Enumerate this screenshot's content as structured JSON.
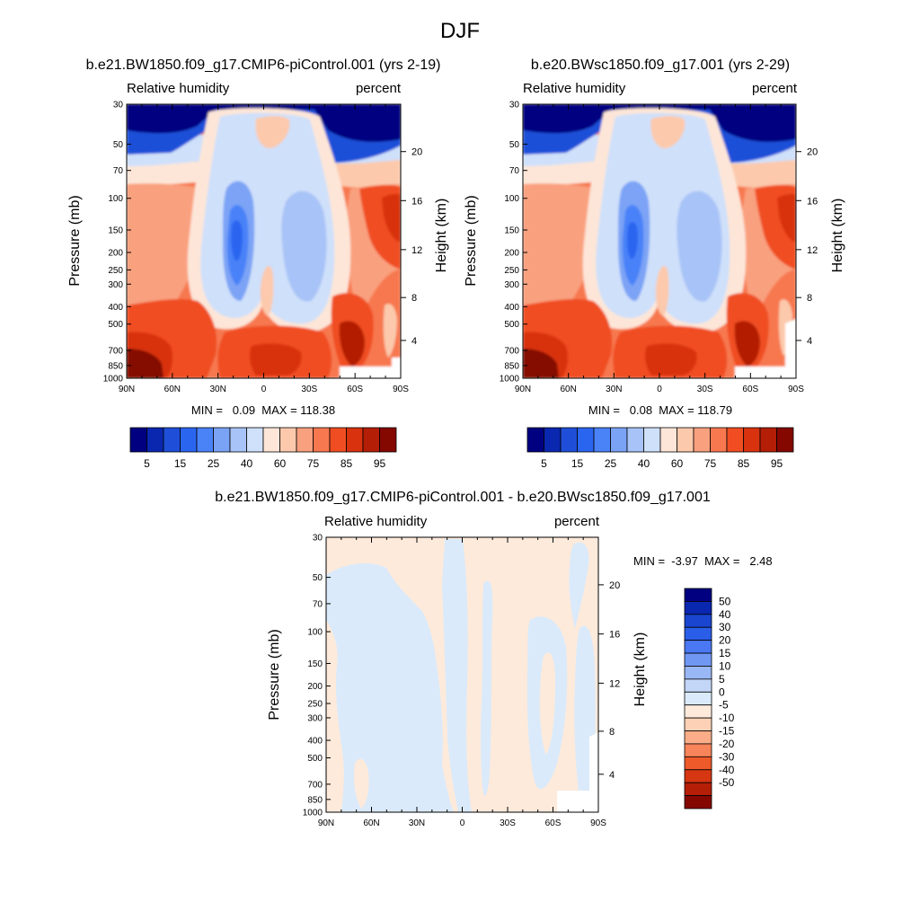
{
  "figure": {
    "title": "DJF"
  },
  "colors": {
    "absolute_scale": [
      "#000080",
      "#0a27b0",
      "#1f4fd8",
      "#2a65f0",
      "#4a82f8",
      "#7ba3f5",
      "#a8c3f7",
      "#cfe0fa",
      "#fde6d8",
      "#fcc9ac",
      "#f9a07e",
      "#f7784f",
      "#f04e22",
      "#d8320e",
      "#b41e06",
      "#840800"
    ],
    "diff_scale": [
      "#000080",
      "#0a27b0",
      "#1a45d0",
      "#2a5de8",
      "#4a78f3",
      "#7098f3",
      "#9ab7f5",
      "#c3d6f8",
      "#daeafa",
      "#feeadb",
      "#fcd1b6",
      "#faad88",
      "#f7845a",
      "#ef5a2a",
      "#d63612",
      "#b51f07",
      "#840800"
    ]
  },
  "chart_data": [
    {
      "type": "heatmap",
      "title": "b.e21.BW1850.f09_g17.CMIP6-piControl.001 (yrs 2-19)",
      "subtitle_left": "Relative humidity",
      "subtitle_right": "percent",
      "ylabel": "Pressure (mb)",
      "ylabel_right": "Height (km)",
      "x_ticks": [
        "90N",
        "60N",
        "30N",
        "0",
        "30S",
        "60S",
        "90S"
      ],
      "y_ticks": [
        "30",
        "50",
        "70",
        "100",
        "150",
        "200",
        "250",
        "300",
        "400",
        "500",
        "700",
        "850",
        "1000"
      ],
      "y_ticks_right": [
        "20",
        "16",
        "12",
        "8",
        "4"
      ],
      "stats": "MIN =   0.09  MAX = 118.38",
      "colorbar_labels": [
        "5",
        "15",
        "25",
        "40",
        "60",
        "75",
        "85",
        "95"
      ],
      "xlim": [
        90,
        -90
      ],
      "ylim": [
        1000,
        30
      ],
      "y_scale": "log"
    },
    {
      "type": "heatmap",
      "title": "b.e20.BWsc1850.f09_g17.001 (yrs 2-29)",
      "subtitle_left": "Relative humidity",
      "subtitle_right": "percent",
      "ylabel": "Pressure (mb)",
      "ylabel_right": "Height (km)",
      "x_ticks": [
        "90N",
        "60N",
        "30N",
        "0",
        "30S",
        "60S",
        "90S"
      ],
      "y_ticks": [
        "30",
        "50",
        "70",
        "100",
        "150",
        "200",
        "250",
        "300",
        "400",
        "500",
        "700",
        "850",
        "1000"
      ],
      "y_ticks_right": [
        "20",
        "16",
        "12",
        "8",
        "4"
      ],
      "stats": "MIN =   0.08  MAX = 118.79",
      "colorbar_labels": [
        "5",
        "15",
        "25",
        "40",
        "60",
        "75",
        "85",
        "95"
      ],
      "xlim": [
        90,
        -90
      ],
      "ylim": [
        1000,
        30
      ],
      "y_scale": "log"
    },
    {
      "type": "heatmap",
      "title": "b.e21.BW1850.f09_g17.CMIP6-piControl.001 - b.e20.BWsc1850.f09_g17.001",
      "subtitle_left": "Relative humidity",
      "subtitle_right": "percent",
      "ylabel": "Pressure (mb)",
      "ylabel_right": "Height (km)",
      "x_ticks": [
        "90N",
        "60N",
        "30N",
        "0",
        "30S",
        "60S",
        "90S"
      ],
      "y_ticks": [
        "30",
        "50",
        "70",
        "100",
        "150",
        "200",
        "250",
        "300",
        "400",
        "500",
        "700",
        "850",
        "1000"
      ],
      "y_ticks_right": [
        "20",
        "16",
        "12",
        "8",
        "4"
      ],
      "stats": "MIN =  -3.97  MAX =   2.48",
      "colorbar_labels": [
        "50",
        "40",
        "30",
        "20",
        "15",
        "10",
        "5",
        "0",
        "-5",
        "-10",
        "-15",
        "-20",
        "-30",
        "-40",
        "-50"
      ],
      "xlim": [
        90,
        -90
      ],
      "ylim": [
        1000,
        30
      ],
      "y_scale": "log"
    }
  ]
}
